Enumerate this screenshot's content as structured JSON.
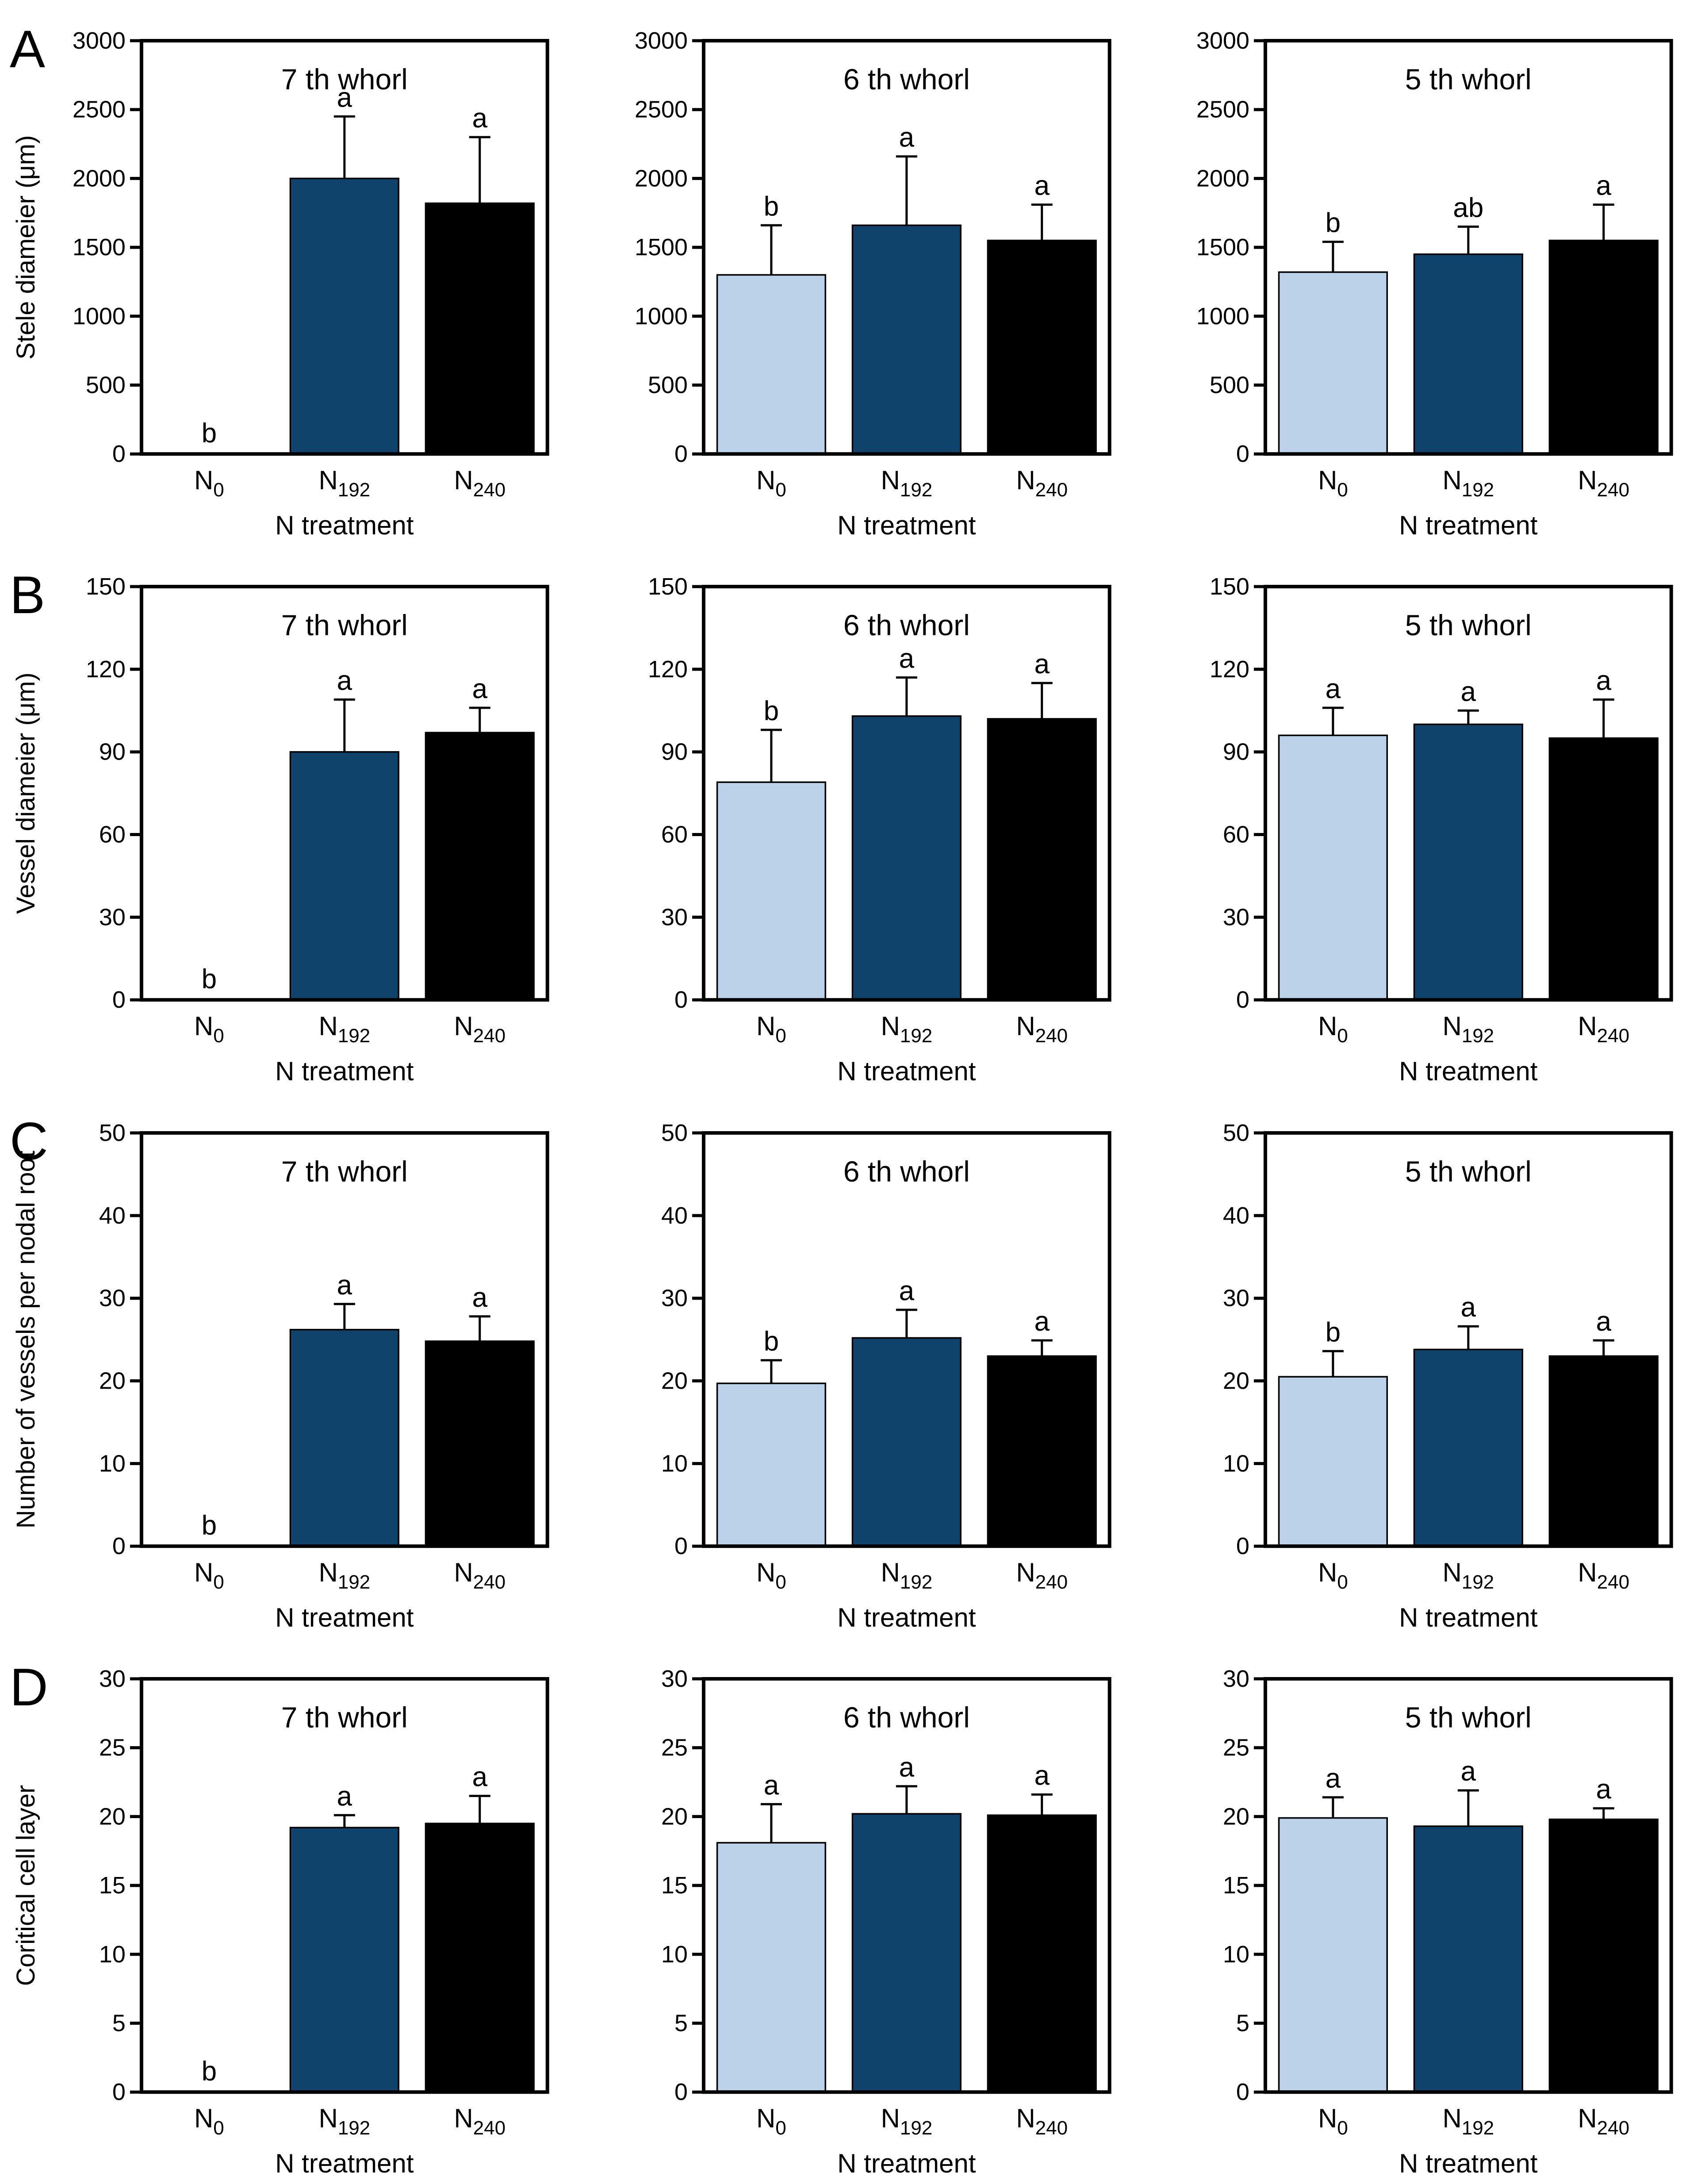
{
  "shared": {
    "xlabel": "N treatment",
    "x_categories": [
      {
        "base": "N",
        "sub": "0"
      },
      {
        "base": "N",
        "sub": "192"
      },
      {
        "base": "N",
        "sub": "240"
      }
    ],
    "bar_colors": [
      "#bcd2e8",
      "#10436b",
      "#000000"
    ],
    "bar_border_color": "#000000",
    "row_labels": [
      "A",
      "B",
      "C",
      "D"
    ]
  },
  "chart_data": [
    {
      "type": "bar",
      "panel_label": "A",
      "title": "7 th whorl",
      "ylabel": "Stele diameier (μm)",
      "xlabel": "N treatment",
      "ylim": [
        0,
        3000
      ],
      "ytick_step": 500,
      "categories": [
        "N0",
        "N192",
        "N240"
      ],
      "values": [
        0,
        2000,
        1820
      ],
      "errors": [
        0,
        450,
        480
      ],
      "letters": [
        "b",
        "a",
        "a"
      ]
    },
    {
      "type": "bar",
      "panel_label": "",
      "title": "6 th whorl",
      "ylabel": "",
      "xlabel": "N treatment",
      "ylim": [
        0,
        3000
      ],
      "ytick_step": 500,
      "categories": [
        "N0",
        "N192",
        "N240"
      ],
      "values": [
        1300,
        1660,
        1550
      ],
      "errors": [
        360,
        500,
        260
      ],
      "letters": [
        "b",
        "a",
        "a"
      ]
    },
    {
      "type": "bar",
      "panel_label": "",
      "title": "5 th whorl",
      "ylabel": "",
      "xlabel": "N treatment",
      "ylim": [
        0,
        3000
      ],
      "ytick_step": 500,
      "categories": [
        "N0",
        "N192",
        "N240"
      ],
      "values": [
        1320,
        1450,
        1550
      ],
      "errors": [
        220,
        200,
        260
      ],
      "letters": [
        "b",
        "ab",
        "a"
      ]
    },
    {
      "type": "bar",
      "panel_label": "B",
      "title": "7 th whorl",
      "ylabel": "Vessel diameier (μm)",
      "xlabel": "N treatment",
      "ylim": [
        0,
        150
      ],
      "ytick_step": 30,
      "categories": [
        "N0",
        "N192",
        "N240"
      ],
      "values": [
        0,
        90,
        97
      ],
      "errors": [
        0,
        19,
        9
      ],
      "letters": [
        "b",
        "a",
        "a"
      ]
    },
    {
      "type": "bar",
      "panel_label": "",
      "title": "6 th whorl",
      "ylabel": "",
      "xlabel": "N treatment",
      "ylim": [
        0,
        150
      ],
      "ytick_step": 30,
      "categories": [
        "N0",
        "N192",
        "N240"
      ],
      "values": [
        79,
        103,
        102
      ],
      "errors": [
        19,
        14,
        13
      ],
      "letters": [
        "b",
        "a",
        "a"
      ]
    },
    {
      "type": "bar",
      "panel_label": "",
      "title": "5 th whorl",
      "ylabel": "",
      "xlabel": "N treatment",
      "ylim": [
        0,
        150
      ],
      "ytick_step": 30,
      "categories": [
        "N0",
        "N192",
        "N240"
      ],
      "values": [
        96,
        100,
        95
      ],
      "errors": [
        10,
        5,
        14
      ],
      "letters": [
        "a",
        "a",
        "a"
      ]
    },
    {
      "type": "bar",
      "panel_label": "C",
      "title": "7 th whorl",
      "ylabel": "Number of vessels per nodal root",
      "xlabel": "N treatment",
      "ylim": [
        0,
        50
      ],
      "ytick_step": 10,
      "categories": [
        "N0",
        "N192",
        "N240"
      ],
      "values": [
        0,
        26.2,
        24.8
      ],
      "errors": [
        0,
        3.1,
        3.0
      ],
      "letters": [
        "b",
        "a",
        "a"
      ]
    },
    {
      "type": "bar",
      "panel_label": "",
      "title": "6 th whorl",
      "ylabel": "",
      "xlabel": "N treatment",
      "ylim": [
        0,
        50
      ],
      "ytick_step": 10,
      "categories": [
        "N0",
        "N192",
        "N240"
      ],
      "values": [
        19.7,
        25.2,
        23.0
      ],
      "errors": [
        2.8,
        3.4,
        1.9
      ],
      "letters": [
        "b",
        "a",
        "a"
      ]
    },
    {
      "type": "bar",
      "panel_label": "",
      "title": "5 th whorl",
      "ylabel": "",
      "xlabel": "N treatment",
      "ylim": [
        0,
        50
      ],
      "ytick_step": 10,
      "categories": [
        "N0",
        "N192",
        "N240"
      ],
      "values": [
        20.5,
        23.8,
        23.0
      ],
      "errors": [
        3.1,
        2.8,
        1.9
      ],
      "letters": [
        "b",
        "a",
        "a"
      ]
    },
    {
      "type": "bar",
      "panel_label": "D",
      "title": "7 th whorl",
      "ylabel": "Coritical cell layer",
      "xlabel": "N treatment",
      "ylim": [
        0,
        30
      ],
      "ytick_step": 5,
      "categories": [
        "N0",
        "N192",
        "N240"
      ],
      "values": [
        0,
        19.2,
        19.5
      ],
      "errors": [
        0,
        0.9,
        2.0
      ],
      "letters": [
        "b",
        "a",
        "a"
      ]
    },
    {
      "type": "bar",
      "panel_label": "",
      "title": "6 th whorl",
      "ylabel": "",
      "xlabel": "N treatment",
      "ylim": [
        0,
        30
      ],
      "ytick_step": 5,
      "categories": [
        "N0",
        "N192",
        "N240"
      ],
      "values": [
        18.1,
        20.2,
        20.1
      ],
      "errors": [
        2.8,
        2.0,
        1.5
      ],
      "letters": [
        "a",
        "a",
        "a"
      ]
    },
    {
      "type": "bar",
      "panel_label": "",
      "title": "5 th whorl",
      "ylabel": "",
      "xlabel": "N treatment",
      "ylim": [
        0,
        30
      ],
      "ytick_step": 5,
      "categories": [
        "N0",
        "N192",
        "N240"
      ],
      "values": [
        19.9,
        19.3,
        19.8
      ],
      "errors": [
        1.5,
        2.6,
        0.8
      ],
      "letters": [
        "a",
        "a",
        "a"
      ]
    }
  ]
}
